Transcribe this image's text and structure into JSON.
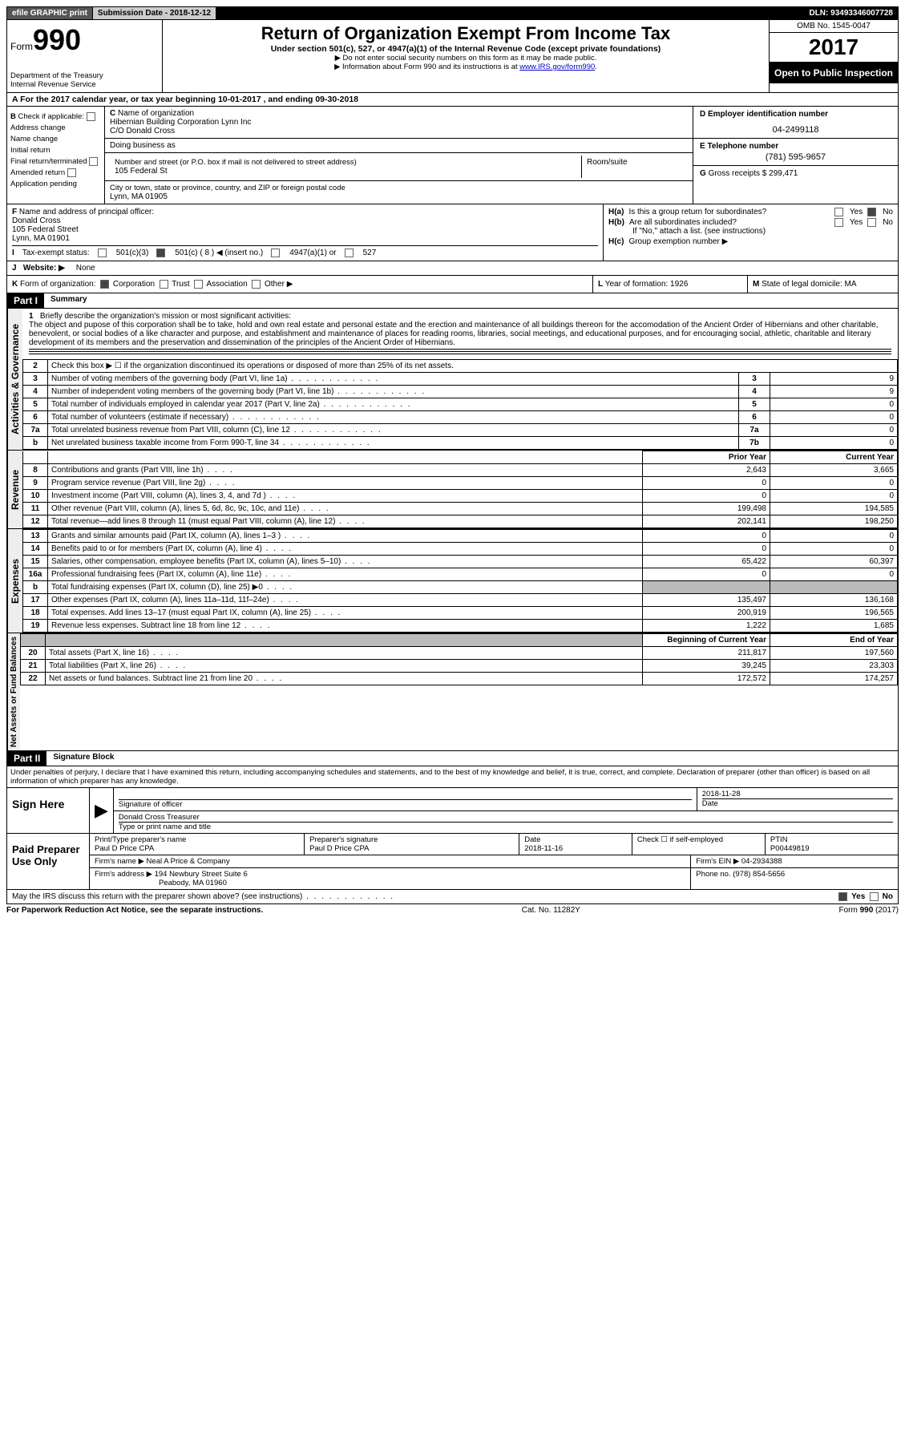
{
  "topbar": {
    "efile": "efile GRAPHIC print",
    "submission_label": "Submission Date - 2018-12-12",
    "dln": "DLN: 93493346007728"
  },
  "header": {
    "form_prefix": "Form",
    "form_num": "990",
    "dept1": "Department of the Treasury",
    "dept2": "Internal Revenue Service",
    "title": "Return of Organization Exempt From Income Tax",
    "subtitle": "Under section 501(c), 527, or 4947(a)(1) of the Internal Revenue Code (except private foundations)",
    "note1": "▶ Do not enter social security numbers on this form as it may be made public.",
    "note2_pre": "▶ Information about Form 990 and its instructions is at ",
    "note2_link": "www.IRS.gov/form990",
    "omb": "OMB No. 1545-0047",
    "year": "2017",
    "open": "Open to Public Inspection"
  },
  "rowA": "A   For the 2017 calendar year, or tax year beginning 10-01-2017        , and ending 09-30-2018",
  "checks": {
    "b_label": "B",
    "b_text": "Check if applicable:",
    "items": [
      "Address change",
      "Name change",
      "Initial return",
      "Final return/terminated",
      "Amended return",
      "Application pending"
    ]
  },
  "org": {
    "c_label": "C",
    "name_lbl": "Name of organization",
    "name": "Hibernian Building Corporation Lynn Inc",
    "co": "C/O Donald Cross",
    "dba_lbl": "Doing business as",
    "addr_lbl": "Number and street (or P.O. box if mail is not delivered to street address)",
    "room_lbl": "Room/suite",
    "addr": "105 Federal St",
    "city_lbl": "City or town, state or province, country, and ZIP or foreign postal code",
    "city": "Lynn, MA   01905"
  },
  "dcol": {
    "d_lbl": "D Employer identification number",
    "ein": "04-2499118",
    "e_lbl": "E Telephone number",
    "phone": "(781) 595-9657",
    "g_lbl": "G",
    "g_text": "Gross receipts $ 299,471"
  },
  "fh": {
    "f_lbl": "F",
    "f_text": "Name and address of principal officer:",
    "f_name": "Donald Cross",
    "f_addr1": "105 Federal Street",
    "f_addr2": "Lynn, MA   01901",
    "ha": "H(a)",
    "ha_text": "Is this a group return for subordinates?",
    "hb": "H(b)",
    "hb_text": "Are all subordinates included?",
    "hb_note": "If \"No,\" attach a list. (see instructions)",
    "hc": "H(c)",
    "hc_text": "Group exemption number ▶",
    "yes": "Yes",
    "no": "No"
  },
  "rowI": {
    "label": "I",
    "text": "Tax-exempt status:",
    "c3": "501(c)(3)",
    "c": "501(c) ( 8 ) ◀ (insert no.)",
    "a1": "4947(a)(1) or",
    "527": "527"
  },
  "rowJ": {
    "label": "J",
    "text": "Website: ▶",
    "val": "None"
  },
  "rowK": {
    "label": "K",
    "text": "Form of organization:",
    "opts": [
      "Corporation",
      "Trust",
      "Association",
      "Other ▶"
    ],
    "l": "L",
    "l_text": "Year of formation: 1926",
    "m": "M",
    "m_text": "State of legal domicile: MA"
  },
  "part1": {
    "hdr": "Part I",
    "title": "Summary",
    "q1_num": "1",
    "q1": "Briefly describe the organization's mission or most significant activities:",
    "mission": "The object and pupose of this corporation shall be to take, hold and own real estate and personal estate and the erection and maintenance of all buildings thereon for the accomodation of the Ancient Order of Hibernians and other charitable, benevolent, or social bodies of a like character and purpose, and establishment and maintenance of places for reading rooms, libraries, social meetings, and educational purposes, and for encouraging social, athletic, charitable and literary development of its members and the preservation and dissemination of the principles of the Ancient Order of Hibernians.",
    "gov_tab": "Activities & Governance",
    "rev_tab": "Revenue",
    "exp_tab": "Expenses",
    "net_tab": "Net Assets or Fund Balances",
    "lines_gov": [
      {
        "n": "2",
        "d": "Check this box ▶ ☐ if the organization discontinued its operations or disposed of more than 25% of its net assets."
      },
      {
        "n": "3",
        "d": "Number of voting members of the governing body (Part VI, line 1a)",
        "c": "3",
        "v": "9"
      },
      {
        "n": "4",
        "d": "Number of independent voting members of the governing body (Part VI, line 1b)",
        "c": "4",
        "v": "9"
      },
      {
        "n": "5",
        "d": "Total number of individuals employed in calendar year 2017 (Part V, line 2a)",
        "c": "5",
        "v": "0"
      },
      {
        "n": "6",
        "d": "Total number of volunteers (estimate if necessary)",
        "c": "6",
        "v": "0"
      },
      {
        "n": "7a",
        "d": "Total unrelated business revenue from Part VIII, column (C), line 12",
        "c": "7a",
        "v": "0"
      },
      {
        "n": "b",
        "d": "Net unrelated business taxable income from Form 990-T, line 34",
        "c": "7b",
        "v": "0"
      }
    ],
    "py": "Prior Year",
    "cy": "Current Year",
    "lines_rev": [
      {
        "n": "8",
        "d": "Contributions and grants (Part VIII, line 1h)",
        "p": "2,643",
        "c": "3,665"
      },
      {
        "n": "9",
        "d": "Program service revenue (Part VIII, line 2g)",
        "p": "0",
        "c": "0"
      },
      {
        "n": "10",
        "d": "Investment income (Part VIII, column (A), lines 3, 4, and 7d )",
        "p": "0",
        "c": "0"
      },
      {
        "n": "11",
        "d": "Other revenue (Part VIII, column (A), lines 5, 6d, 8c, 9c, 10c, and 11e)",
        "p": "199,498",
        "c": "194,585"
      },
      {
        "n": "12",
        "d": "Total revenue—add lines 8 through 11 (must equal Part VIII, column (A), line 12)",
        "p": "202,141",
        "c": "198,250"
      }
    ],
    "lines_exp": [
      {
        "n": "13",
        "d": "Grants and similar amounts paid (Part IX, column (A), lines 1–3 )",
        "p": "0",
        "c": "0"
      },
      {
        "n": "14",
        "d": "Benefits paid to or for members (Part IX, column (A), line 4)",
        "p": "0",
        "c": "0"
      },
      {
        "n": "15",
        "d": "Salaries, other compensation, employee benefits (Part IX, column (A), lines 5–10)",
        "p": "65,422",
        "c": "60,397"
      },
      {
        "n": "16a",
        "d": "Professional fundraising fees (Part IX, column (A), line 11e)",
        "p": "0",
        "c": "0"
      },
      {
        "n": "b",
        "d": "Total fundraising expenses (Part IX, column (D), line 25) ▶0",
        "p": "",
        "c": "",
        "grey": true
      },
      {
        "n": "17",
        "d": "Other expenses (Part IX, column (A), lines 11a–11d, 11f–24e)",
        "p": "135,497",
        "c": "136,168"
      },
      {
        "n": "18",
        "d": "Total expenses. Add lines 13–17 (must equal Part IX, column (A), line 25)",
        "p": "200,919",
        "c": "196,565"
      },
      {
        "n": "19",
        "d": "Revenue less expenses. Subtract line 18 from line 12",
        "p": "1,222",
        "c": "1,685"
      }
    ],
    "bcy": "Beginning of Current Year",
    "ey": "End of Year",
    "lines_net": [
      {
        "n": "20",
        "d": "Total assets (Part X, line 16)",
        "p": "211,817",
        "c": "197,560"
      },
      {
        "n": "21",
        "d": "Total liabilities (Part X, line 26)",
        "p": "39,245",
        "c": "23,303"
      },
      {
        "n": "22",
        "d": "Net assets or fund balances. Subtract line 21 from line 20",
        "p": "172,572",
        "c": "174,257"
      }
    ]
  },
  "part2": {
    "hdr": "Part II",
    "title": "Signature Block",
    "decl": "Under penalties of perjury, I declare that I have examined this return, including accompanying schedules and statements, and to the best of my knowledge and belief, it is true, correct, and complete. Declaration of preparer (other than officer) is based on all information of which preparer has any knowledge.",
    "sign_here": "Sign Here",
    "sig_officer": "Signature of officer",
    "sig_date": "2018-11-28",
    "date_lbl": "Date",
    "officer_name": "Donald Cross  Treasurer",
    "type_lbl": "Type or print name and title",
    "paid": "Paid Preparer Use Only",
    "prep_name_lbl": "Print/Type preparer's name",
    "prep_name": "Paul D Price CPA",
    "prep_sig_lbl": "Preparer's signature",
    "prep_sig": "Paul D Price CPA",
    "prep_date_lbl": "Date",
    "prep_date": "2018-11-16",
    "check_se": "Check ☐ if self-employed",
    "ptin_lbl": "PTIN",
    "ptin": "P00449819",
    "firm_name_lbl": "Firm's name      ▶",
    "firm_name": "Neal A Price & Company",
    "firm_ein_lbl": "Firm's EIN ▶",
    "firm_ein": "04-2934388",
    "firm_addr_lbl": "Firm's address ▶",
    "firm_addr": "194 Newbury Street Suite 6",
    "firm_city": "Peabody, MA  01960",
    "firm_phone_lbl": "Phone no.",
    "firm_phone": "(978) 854-5656",
    "discuss": "May the IRS discuss this return with the preparer shown above? (see instructions)",
    "yes": "Yes",
    "no": "No"
  },
  "footer": {
    "left": "For Paperwork Reduction Act Notice, see the separate instructions.",
    "mid": "Cat. No. 11282Y",
    "right": "Form 990 (2017)"
  }
}
